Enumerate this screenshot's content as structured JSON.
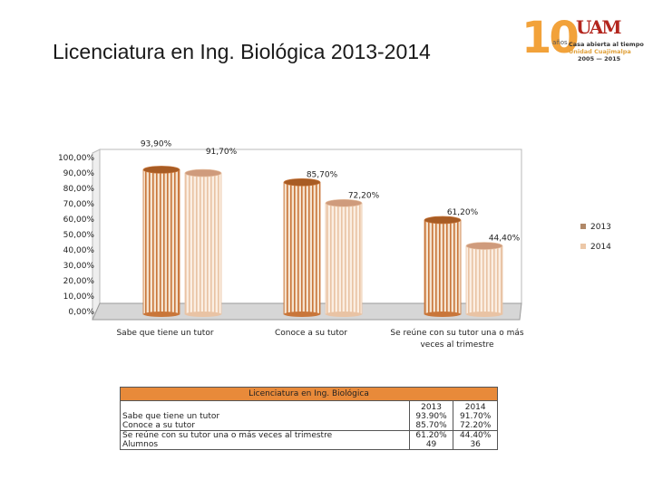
{
  "slide_title": "Licenciatura en Ing. Biológica 2013-2014",
  "logo": {
    "number": "10",
    "suffix": "años",
    "mark": "UAM",
    "line1": "Casa abierta al tiempo",
    "line2": "Unidad Cuajimalpa",
    "line3": "2005 — 2015"
  },
  "colors": {
    "series_2013": "#c9763a",
    "series_2013_light": "#f5e3cf",
    "series_2013_top": "#a85c24",
    "series_2014": "#e9c3a4",
    "series_2014_light": "#fbeee2",
    "series_2014_top": "#cf9b7c",
    "table_header": "#e88a3a",
    "legend_2013": "#b08868",
    "legend_2014": "#ecc8a8"
  },
  "chart_data": {
    "type": "bar",
    "style": "3d-cylinder",
    "categories": [
      "Sabe que tiene un tutor",
      "Conoce a su tutor",
      "Se reúne con su tutor una o más veces al trimestre"
    ],
    "series": [
      {
        "name": "2013",
        "values": [
          93.9,
          85.7,
          61.2
        ],
        "labels": [
          "93,90%",
          "85,70%",
          "61,20%"
        ]
      },
      {
        "name": "2014",
        "values": [
          91.7,
          72.2,
          44.4
        ],
        "labels": [
          "91,70%",
          "72,20%",
          "44,40%"
        ]
      }
    ],
    "yticks": [
      "0,00%",
      "10,00%",
      "20,00%",
      "30,00%",
      "40,00%",
      "50,00%",
      "60,00%",
      "70,00%",
      "80,00%",
      "90,00%",
      "100,00%"
    ],
    "ylim": [
      0,
      100
    ],
    "legend_position": "right",
    "grid": false
  },
  "table": {
    "caption": "Licenciatura en Ing. Biológica",
    "columns": [
      "2013",
      "2014"
    ],
    "rows": [
      {
        "label": "Sabe que tiene un tutor",
        "v2013": "93.90%",
        "v2014": "91.70%"
      },
      {
        "label": "Conoce a su tutor",
        "v2013": "85.70%",
        "v2014": "72.20%"
      },
      {
        "label": "Se reúne con su tutor una o más veces al trimestre",
        "v2013": "61.20%",
        "v2014": "44.40%"
      },
      {
        "label": "Alumnos",
        "v2013": "49",
        "v2014": "36"
      }
    ]
  }
}
